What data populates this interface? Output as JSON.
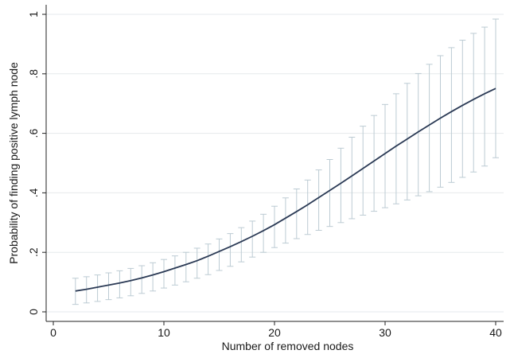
{
  "chart_data": {
    "type": "line",
    "title": "",
    "xlabel": "Number of removed nodes",
    "ylabel": "Probability of finding positive lymph node",
    "xlim": [
      0,
      40
    ],
    "ylim": [
      0,
      1
    ],
    "x_ticks": [
      0,
      10,
      20,
      30,
      40
    ],
    "x_tick_labels": [
      "0",
      "10",
      "20",
      "30",
      "40"
    ],
    "y_ticks": [
      0,
      0.2,
      0.4,
      0.6,
      0.8,
      1
    ],
    "y_tick_labels": [
      "0",
      ".2",
      ".4",
      ".6",
      ".8",
      "1"
    ],
    "grid": true,
    "legend": "none",
    "colors": {
      "curve": "#2b3a55",
      "ci": "#bccbd3",
      "grid": "#e6eaec"
    },
    "series": [
      {
        "x": [
          2,
          3,
          4,
          5,
          6,
          7,
          8,
          9,
          10,
          11,
          12,
          13,
          14,
          15,
          16,
          17,
          18,
          19,
          20,
          21,
          22,
          23,
          24,
          25,
          26,
          27,
          28,
          29,
          30,
          31,
          32,
          33,
          34,
          35,
          36,
          37,
          38,
          39,
          40
        ],
        "y": [
          0.07,
          0.076,
          0.083,
          0.09,
          0.097,
          0.105,
          0.114,
          0.124,
          0.135,
          0.147,
          0.159,
          0.172,
          0.187,
          0.203,
          0.219,
          0.236,
          0.254,
          0.273,
          0.293,
          0.315,
          0.337,
          0.36,
          0.384,
          0.408,
          0.432,
          0.457,
          0.482,
          0.507,
          0.532,
          0.557,
          0.581,
          0.605,
          0.628,
          0.651,
          0.673,
          0.694,
          0.714,
          0.733,
          0.751
        ],
        "lower": [
          0.025,
          0.03,
          0.035,
          0.041,
          0.047,
          0.054,
          0.062,
          0.07,
          0.08,
          0.09,
          0.101,
          0.113,
          0.125,
          0.139,
          0.153,
          0.168,
          0.184,
          0.2,
          0.216,
          0.231,
          0.246,
          0.26,
          0.274,
          0.287,
          0.3,
          0.313,
          0.325,
          0.338,
          0.35,
          0.363,
          0.376,
          0.39,
          0.404,
          0.419,
          0.435,
          0.452,
          0.47,
          0.49,
          0.518
        ],
        "upper": [
          0.113,
          0.118,
          0.124,
          0.131,
          0.138,
          0.146,
          0.155,
          0.165,
          0.176,
          0.188,
          0.2,
          0.214,
          0.228,
          0.245,
          0.263,
          0.283,
          0.305,
          0.328,
          0.355,
          0.383,
          0.413,
          0.443,
          0.477,
          0.512,
          0.55,
          0.587,
          0.624,
          0.66,
          0.697,
          0.733,
          0.768,
          0.801,
          0.832,
          0.861,
          0.888,
          0.913,
          0.936,
          0.957,
          0.984
        ]
      }
    ]
  }
}
